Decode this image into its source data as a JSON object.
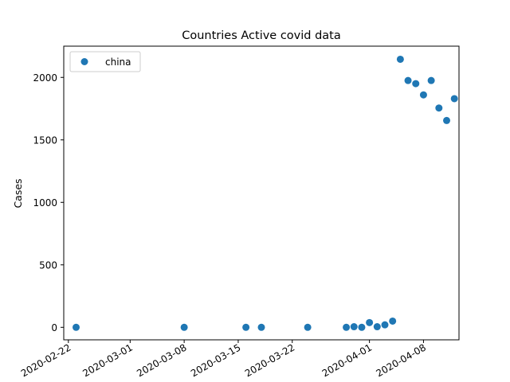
{
  "chart_data": {
    "type": "scatter",
    "title": "Countries Active covid data",
    "xlabel": "",
    "ylabel": "Cases",
    "x_axis_type": "date",
    "xlim": [
      "2020-02-21",
      "2020-04-12"
    ],
    "ylim": [
      -100,
      2250
    ],
    "x_ticks": [
      "2020-02-22",
      "2020-03-01",
      "2020-03-08",
      "2020-03-15",
      "2020-03-22",
      "2020-04-01",
      "2020-04-08"
    ],
    "y_ticks": [
      0,
      500,
      1000,
      1500,
      2000
    ],
    "grid": false,
    "legend": {
      "position": "top-left"
    },
    "series": [
      {
        "name": "china",
        "color": "#1f77b4",
        "marker": "circle",
        "points": [
          {
            "x": "2020-02-23",
            "y": 0
          },
          {
            "x": "2020-03-08",
            "y": 0
          },
          {
            "x": "2020-03-16",
            "y": 0
          },
          {
            "x": "2020-03-18",
            "y": 0
          },
          {
            "x": "2020-03-24",
            "y": 0
          },
          {
            "x": "2020-03-29",
            "y": 0
          },
          {
            "x": "2020-03-30",
            "y": 5
          },
          {
            "x": "2020-03-31",
            "y": 0
          },
          {
            "x": "2020-04-01",
            "y": 38
          },
          {
            "x": "2020-04-02",
            "y": 5
          },
          {
            "x": "2020-04-03",
            "y": 20
          },
          {
            "x": "2020-04-04",
            "y": 50
          },
          {
            "x": "2020-04-05",
            "y": 2145
          },
          {
            "x": "2020-04-06",
            "y": 1975
          },
          {
            "x": "2020-04-07",
            "y": 1950
          },
          {
            "x": "2020-04-08",
            "y": 1860
          },
          {
            "x": "2020-04-09",
            "y": 1975
          },
          {
            "x": "2020-04-10",
            "y": 1755
          },
          {
            "x": "2020-04-11",
            "y": 1655
          },
          {
            "x": "2020-04-12",
            "y": 1830
          }
        ]
      }
    ]
  }
}
